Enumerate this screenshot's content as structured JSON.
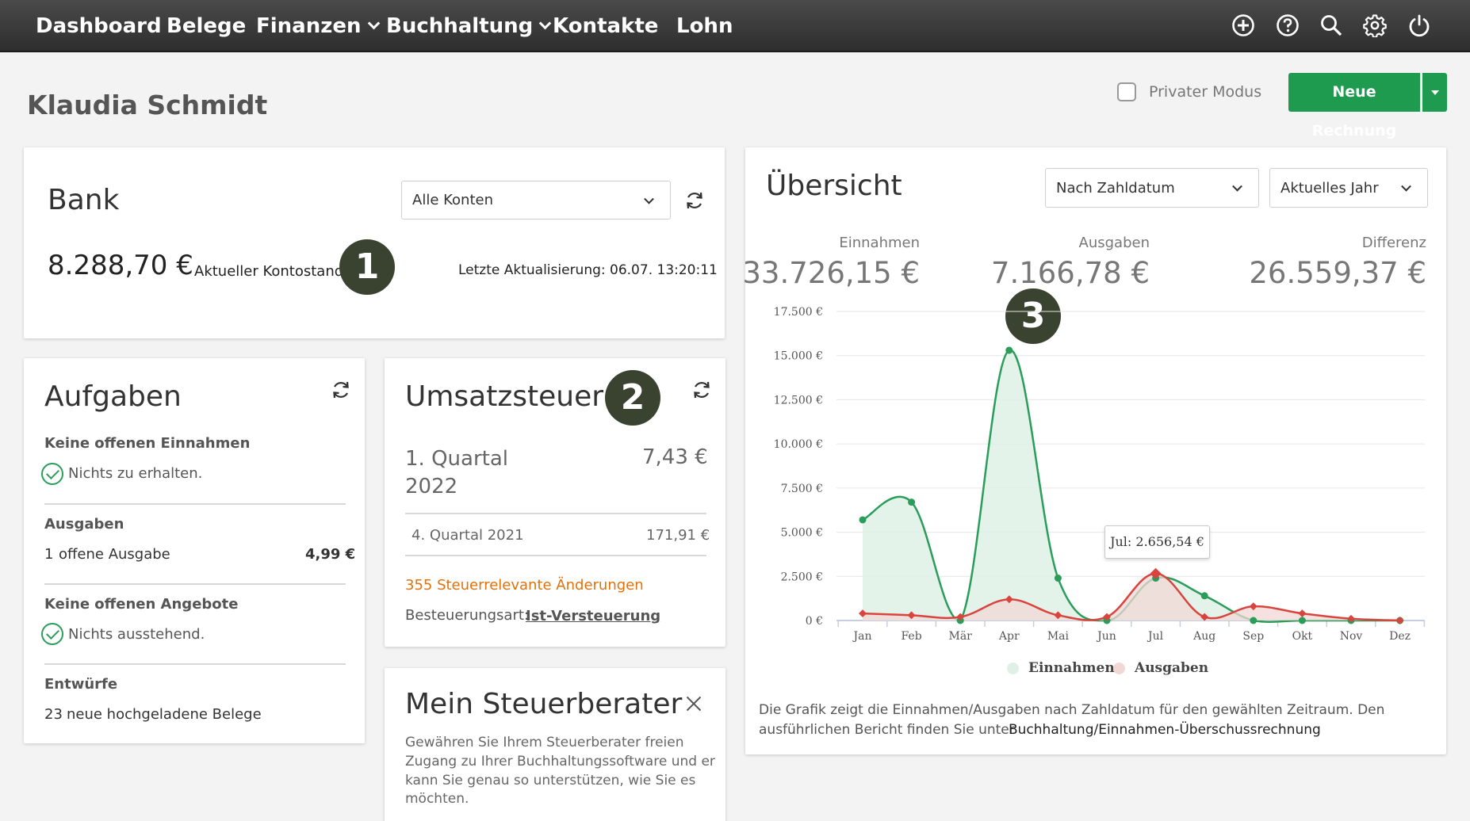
{
  "nav": {
    "items": [
      {
        "label": "Dashboard",
        "has_dropdown": false
      },
      {
        "label": "Belege",
        "has_dropdown": false
      },
      {
        "label": "Finanzen",
        "has_dropdown": true
      },
      {
        "label": "Buchhaltung",
        "has_dropdown": true
      },
      {
        "label": "Kontakte",
        "has_dropdown": false
      },
      {
        "label": "Lohn",
        "has_dropdown": false
      }
    ],
    "icons": [
      "add-circle-icon",
      "help-icon",
      "search-icon",
      "settings-gear-icon",
      "power-icon"
    ]
  },
  "page": {
    "title": "Klaudia Schmidt",
    "private_mode_label": "Privater Modus",
    "private_mode_checked": false,
    "new_invoice_label": "Neue Rechnung"
  },
  "bank": {
    "title": "Bank",
    "account_select": "Alle Konten",
    "balance": "8.288,70 €",
    "balance_label": "Aktueller Kontostand",
    "badge": "1",
    "last_update": "Letzte Aktualisierung: 06.07.  13:20:11"
  },
  "tasks": {
    "title": "Aufgaben",
    "sections": [
      {
        "heading": "Keine offenen Einnahmen",
        "text": "Nichts zu erhalten.",
        "checked": true
      },
      {
        "heading": "Ausgaben",
        "count": "1",
        "text": "offene Ausgabe",
        "amount": "4,99 €"
      },
      {
        "heading": "Keine offenen Angebote",
        "text": "Nichts ausstehend.",
        "checked": true
      },
      {
        "heading": "Entwürfe",
        "count": "23",
        "text": "neue hochgeladene Belege"
      }
    ]
  },
  "vat": {
    "title": "Umsatzsteuer",
    "badge": "2",
    "current_period": "1. Quartal 2022",
    "current_amount": "7,43 €",
    "previous_period": "4. Quartal 2021",
    "previous_amount": "171,91 €",
    "changes_link": "355 Steuerrelevante Änderungen",
    "taxation_label": "Besteuerungsart:",
    "taxation_value": "Ist-Versteuerung"
  },
  "advisor": {
    "title": "Mein Steuerberater",
    "text_lines": [
      "Gewähren Sie Ihrem Steuerberater freien",
      "Zugang zu Ihrer Buchhaltungssoftware und er",
      "kann Sie genau so unterstützen,  wie Sie es",
      "möchten."
    ]
  },
  "overview": {
    "title": "Übersicht",
    "date_select": "Nach Zahldatum",
    "period_select": "Aktuelles Jahr",
    "badge": "3",
    "kpis": [
      {
        "label": "Einnahmen",
        "value": "33.726,15 €"
      },
      {
        "label": "Ausgaben",
        "value": "7.166,78 €"
      },
      {
        "label": "Differenz",
        "value": "26.559,37 €"
      }
    ],
    "tooltip": "Jul: 2.656,54 €",
    "footer_text": "Die Grafik zeigt die Einnahmen/Ausgaben nach Zahldatum für den gewählten Zeitraum. Den",
    "footer_text2": "ausführlichen Bericht finden Sie unter",
    "footer_link": "Buchhaltung/Einnahmen-Überschussrechnung"
  },
  "colors": {
    "income": "#2a9d5a",
    "income_fill": "#dff1e5",
    "expense": "#d9443e",
    "expense_fill": "#f2d8d5",
    "accent_green": "#1f9b4f",
    "orange_link": "#e0720b",
    "badge_bg": "#3a4230"
  },
  "chart_data": {
    "type": "area",
    "categories": [
      "Jan",
      "Feb",
      "Mär",
      "Apr",
      "Mai",
      "Jun",
      "Jul",
      "Aug",
      "Sep",
      "Okt",
      "Nov",
      "Dez"
    ],
    "y_ticks": [
      "0 €",
      "2.500 €",
      "5.000 €",
      "7.500 €",
      "10.000 €",
      "12.500 €",
      "15.000 €",
      "17.500 €"
    ],
    "ylim": [
      0,
      17500
    ],
    "series": [
      {
        "name": "Einnahmen",
        "values": [
          5700,
          6700,
          0,
          15300,
          2400,
          0,
          2400,
          1400,
          0,
          0,
          0,
          0
        ]
      },
      {
        "name": "Ausgaben",
        "values": [
          400,
          300,
          200,
          1200,
          300,
          200,
          2656.54,
          200,
          800,
          400,
          100,
          0
        ]
      }
    ]
  }
}
